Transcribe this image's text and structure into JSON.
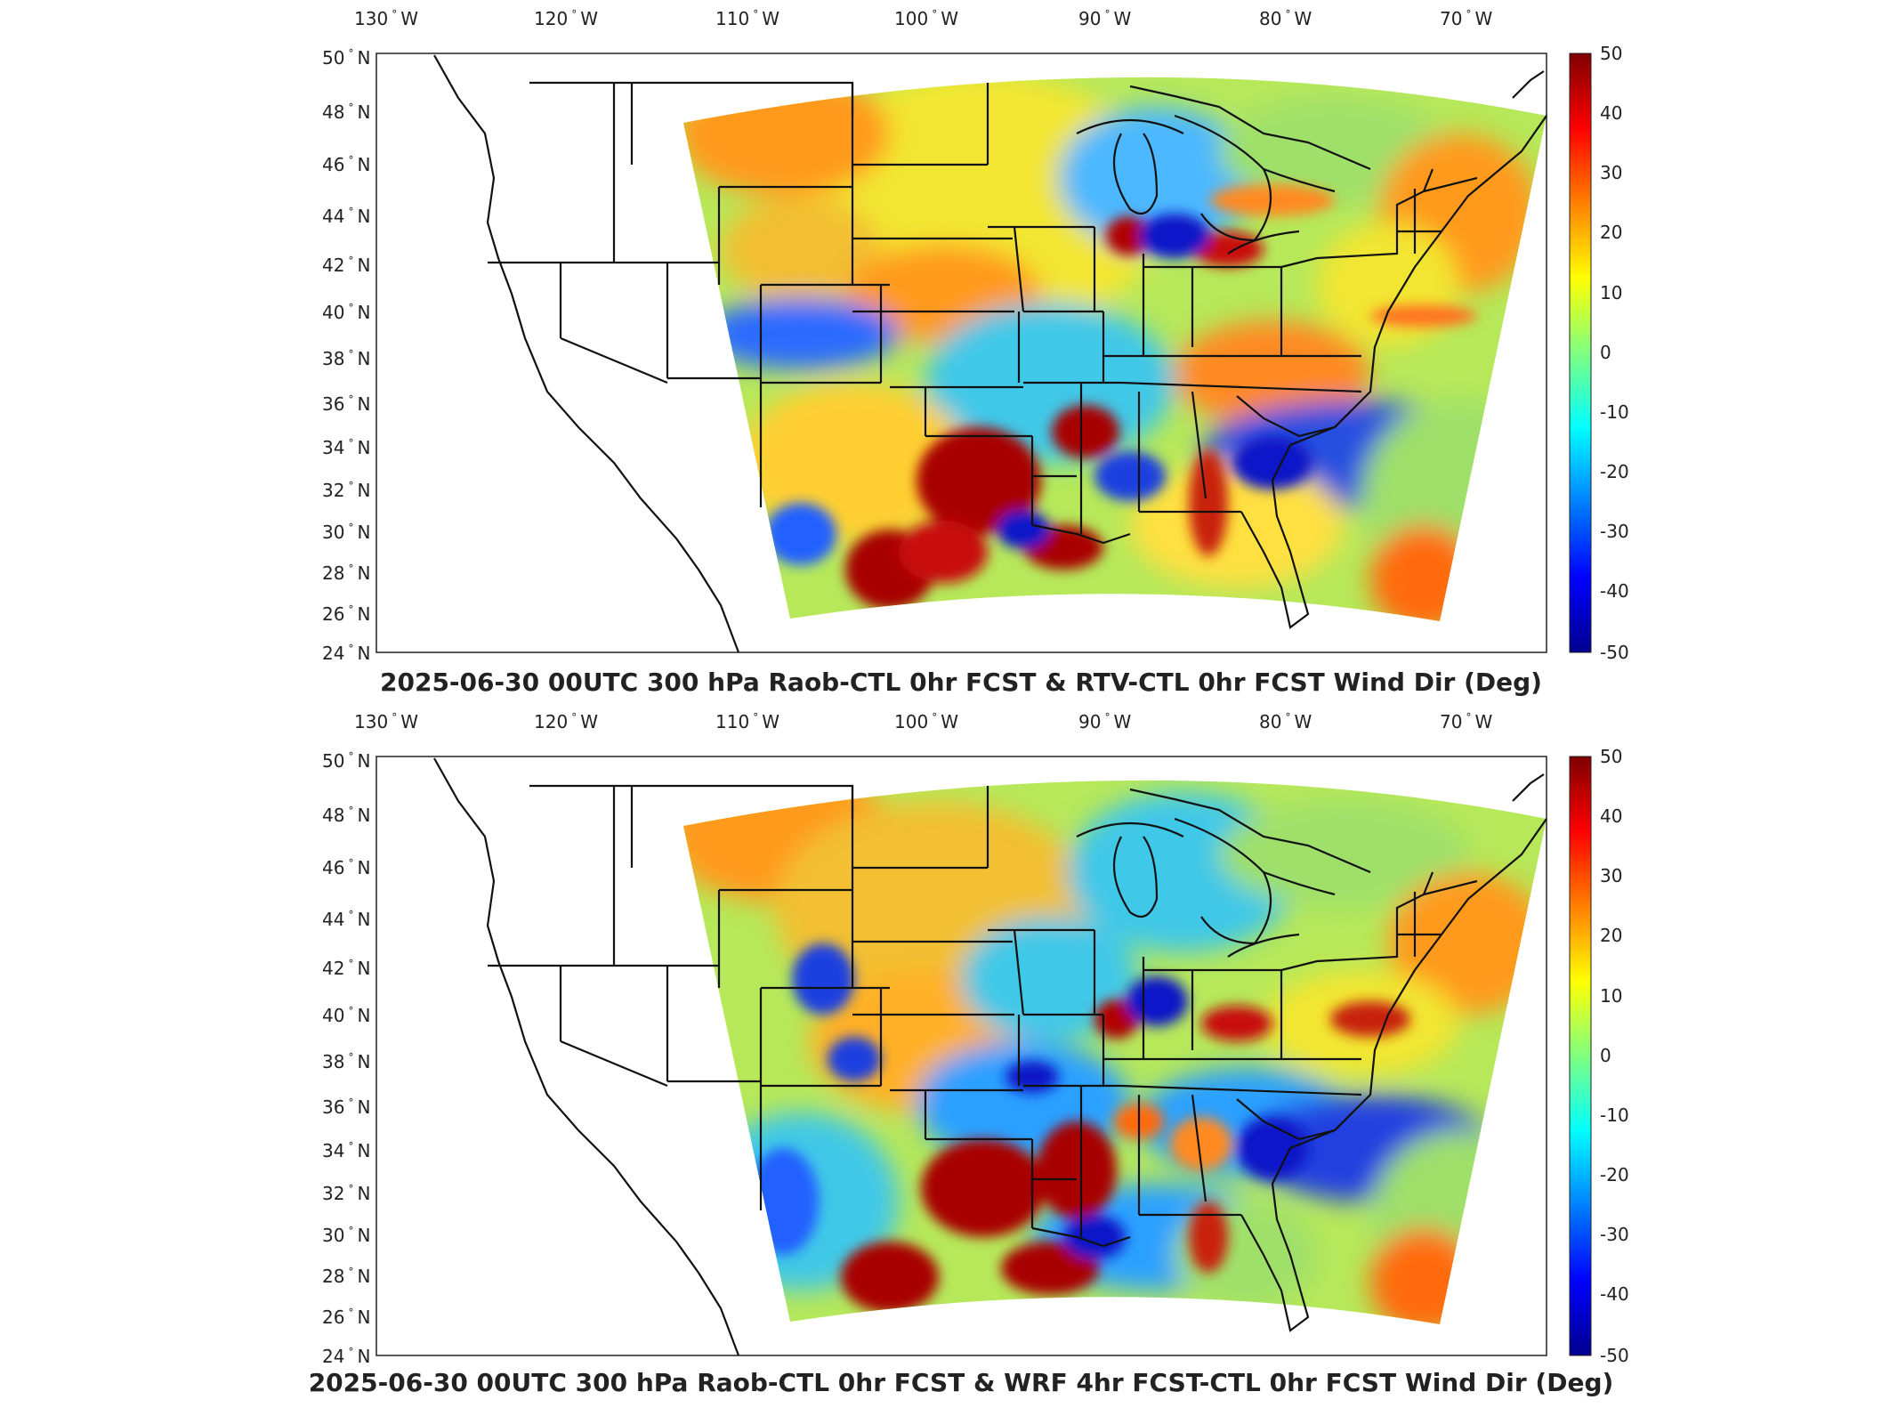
{
  "colorbar": {
    "labels": [
      "50",
      "40",
      "30",
      "20",
      "10",
      "0",
      "-10",
      "-20",
      "-30",
      "-40",
      "-50"
    ],
    "min": -50,
    "max": 50,
    "colormap": [
      "#00008f",
      "#0000ff",
      "#0080ff",
      "#00ffff",
      "#80ff80",
      "#ffff00",
      "#ff8000",
      "#ff0000",
      "#800000"
    ]
  },
  "axes": {
    "lon_labels": [
      "130",
      "120",
      "110",
      "100",
      "90",
      "80",
      "70"
    ],
    "lon_suffix": "W",
    "lat_labels": [
      "50",
      "48",
      "46",
      "44",
      "42",
      "40",
      "38",
      "36",
      "34",
      "32",
      "30",
      "28",
      "26",
      "24"
    ],
    "lat_suffix": "N",
    "degree_symbol": "°"
  },
  "panels": [
    {
      "id": "top",
      "title": "2025-06-30 00UTC 300 hPa Raob-CTL 0hr FCST & RTV-CTL 0hr FCST Wind Dir (Deg)"
    },
    {
      "id": "bottom",
      "title": "2025-06-30 00UTC 300 hPa Raob-CTL 0hr FCST & WRF 4hr FCST-CTL 0hr FCST Wind Dir (Deg)"
    }
  ],
  "field_colors": {
    "background": "#b6e85a",
    "warm": "#ff9a1e",
    "hot": "#a80000",
    "cool": "#2aa0ff",
    "cold": "#0a18c8",
    "yellow": "#f2e631"
  }
}
